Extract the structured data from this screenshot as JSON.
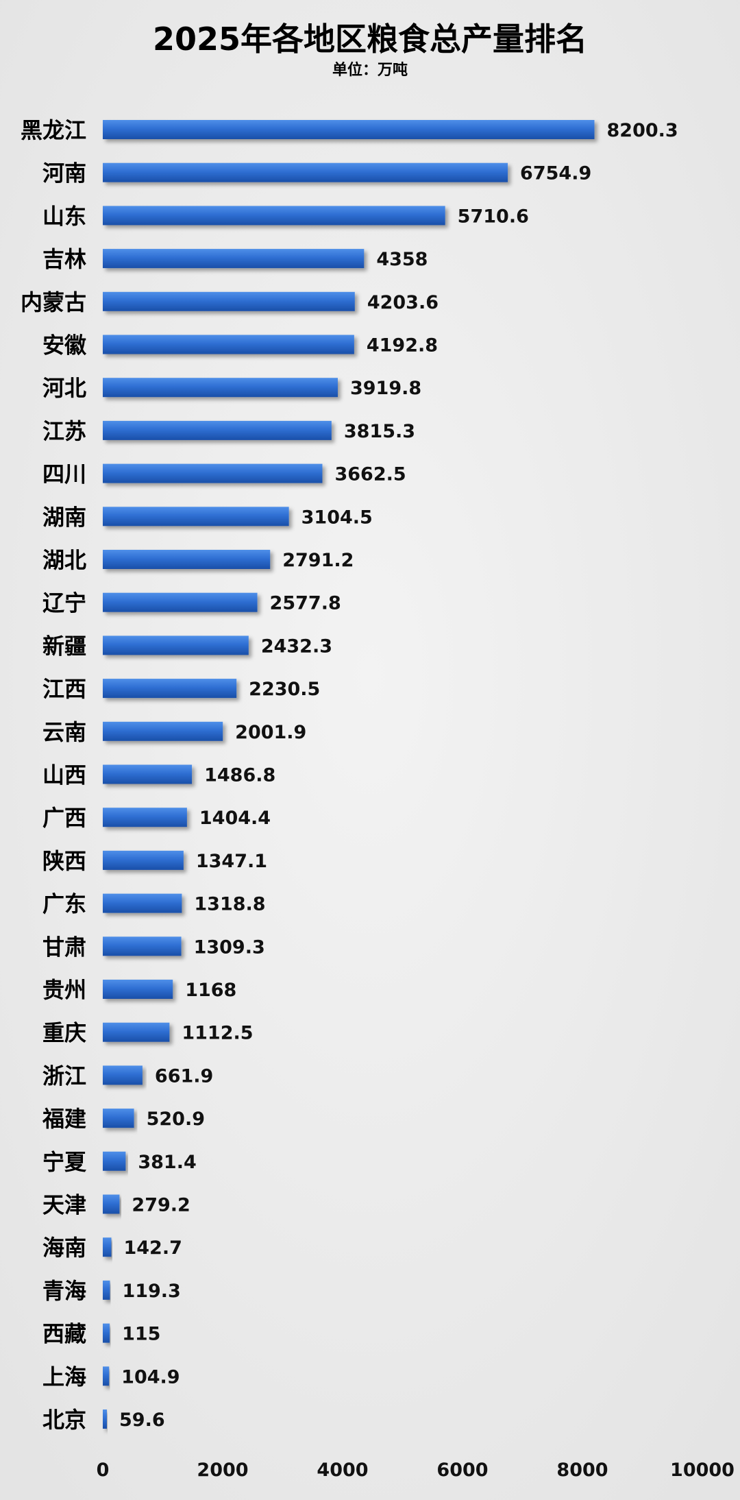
{
  "chart_data": {
    "type": "bar",
    "orientation": "horizontal",
    "title": "2025年各地区粮食总产量排名",
    "subtitle": "单位：万吨",
    "categories": [
      "黑龙江",
      "河南",
      "山东",
      "吉林",
      "内蒙古",
      "安徽",
      "河北",
      "江苏",
      "四川",
      "湖南",
      "湖北",
      "辽宁",
      "新疆",
      "江西",
      "云南",
      "山西",
      "广西",
      "陕西",
      "广东",
      "甘肃",
      "贵州",
      "重庆",
      "浙江",
      "福建",
      "宁夏",
      "天津",
      "海南",
      "青海",
      "西藏",
      "上海",
      "北京"
    ],
    "values": [
      8200.3,
      6754.9,
      5710.6,
      4358,
      4203.6,
      4192.8,
      3919.8,
      3815.3,
      3662.5,
      3104.5,
      2791.2,
      2577.8,
      2432.3,
      2230.5,
      2001.9,
      1486.8,
      1404.4,
      1347.1,
      1318.8,
      1309.3,
      1168,
      1112.5,
      661.9,
      520.9,
      381.4,
      279.2,
      142.7,
      119.3,
      115,
      104.9,
      59.6
    ],
    "value_labels": [
      "8200.3",
      "6754.9",
      "5710.6",
      "4358",
      "4203.6",
      "4192.8",
      "3919.8",
      "3815.3",
      "3662.5",
      "3104.5",
      "2791.2",
      "2577.8",
      "2432.3",
      "2230.5",
      "2001.9",
      "1486.8",
      "1404.4",
      "1347.1",
      "1318.8",
      "1309.3",
      "1168",
      "1112.5",
      "661.9",
      "520.9",
      "381.4",
      "279.2",
      "142.7",
      "119.3",
      "115",
      "104.9",
      "59.6"
    ],
    "xticks": [
      "0",
      "2000",
      "4000",
      "6000",
      "8000",
      "10000"
    ],
    "xlim": [
      0,
      10000
    ],
    "grid": false,
    "legend": "none",
    "bar_color": "#2f6fd3",
    "background": "#ebebeb"
  }
}
